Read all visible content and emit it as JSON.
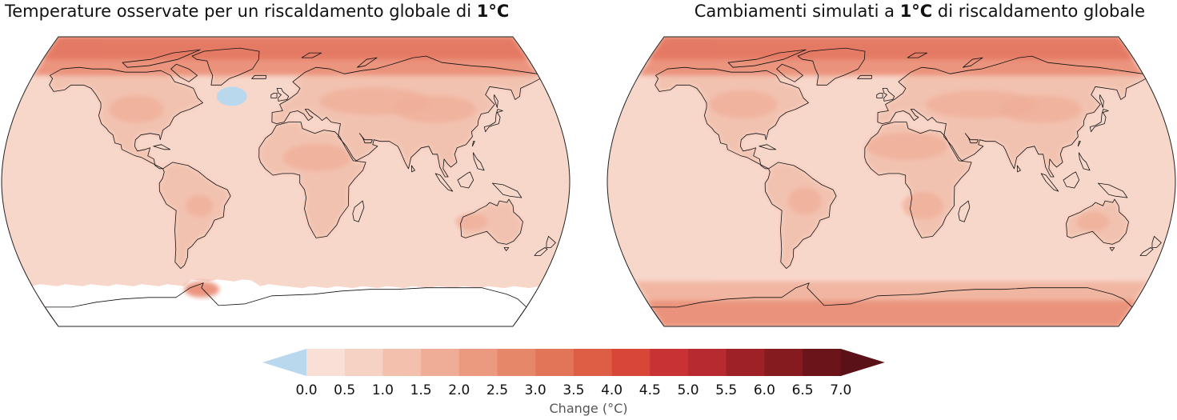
{
  "panels": [
    {
      "title_prefix": "Temperature osservate per un riscaldamento globale di ",
      "title_bold": "1°C",
      "title_suffix": "",
      "variant": "observed"
    },
    {
      "title_prefix": "Cambiamenti simulati a ",
      "title_bold": "1°C",
      "title_suffix": " di riscaldamento globale",
      "variant": "simulated"
    }
  ],
  "colorbar": {
    "label": "Change (°C)",
    "ticks": [
      "0.0",
      "0.5",
      "1.0",
      "1.5",
      "2.0",
      "2.5",
      "3.0",
      "3.5",
      "4.0",
      "4.5",
      "5.0",
      "5.5",
      "6.0",
      "6.5",
      "7.0"
    ],
    "below_color": "#b9d8ee",
    "colors": [
      "#f9e0d6",
      "#f6d2c5",
      "#f3c0ad",
      "#efac96",
      "#eb9a80",
      "#e7876a",
      "#e27458",
      "#dd5e45",
      "#d84638",
      "#c93235",
      "#b62a30",
      "#9d2126",
      "#851a1f",
      "#6b141a"
    ],
    "above_color": "#5a1218"
  },
  "map_colors": {
    "ocean_base": "#f8d7cb",
    "land_base": "#f2c2b0",
    "warm_land": "#efae98",
    "arctic_warm": "#e98a72",
    "arctic_hot": "#e2705a",
    "cold_blob": "#b9d8ee",
    "no_data": "#ffffff",
    "coast": "#111111"
  }
}
